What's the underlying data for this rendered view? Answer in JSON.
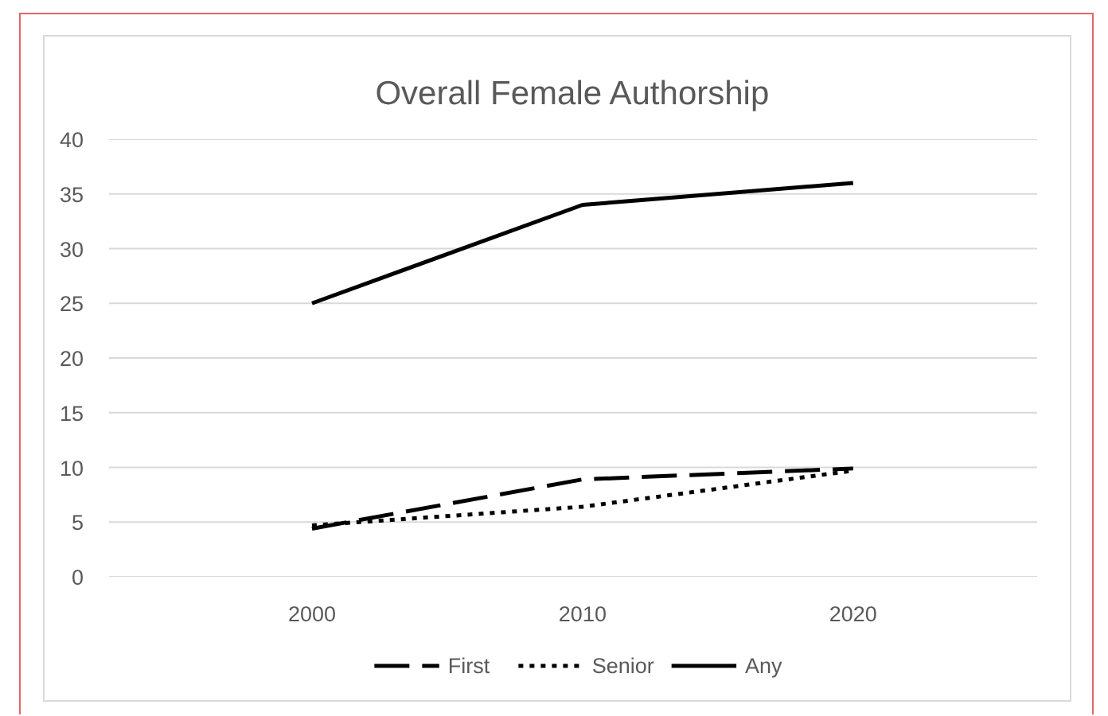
{
  "chart_data": {
    "type": "line",
    "title": "Overall Female Authorship",
    "categories": [
      "2000",
      "2010",
      "2020"
    ],
    "series": [
      {
        "name": "First",
        "color": "#000000",
        "line_style": "dashed",
        "values": [
          4.4,
          8.9,
          9.9
        ]
      },
      {
        "name": "Senior",
        "color": "#000000",
        "line_style": "dotted",
        "values": [
          4.7,
          6.4,
          9.7
        ]
      },
      {
        "name": "Any",
        "color": "#000000",
        "line_style": "solid",
        "values": [
          25,
          34,
          36
        ]
      }
    ],
    "ylim": [
      0,
      40
    ],
    "yticks": [
      0,
      5,
      10,
      15,
      20,
      25,
      30,
      35,
      40
    ],
    "grid": "y",
    "legend": "bottom",
    "marker": "none"
  }
}
